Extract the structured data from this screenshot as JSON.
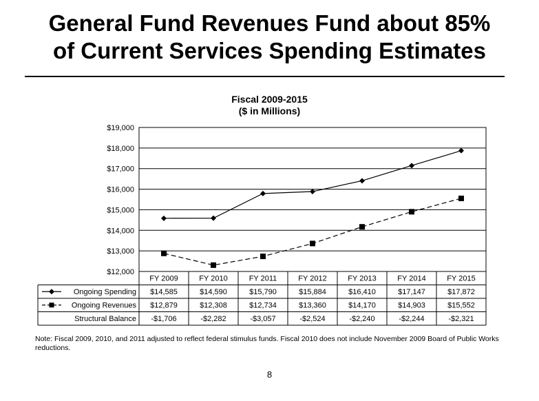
{
  "slide": {
    "title_line1": "General Fund Revenues Fund about 85%",
    "title_line2": "of Current Services Spending Estimates",
    "note": "Note:  Fiscal 2009, 2010, and 2011 adjusted to reflect federal stimulus funds.  Fiscal 2010 does not include November 2009 Board of Public Works reductions.",
    "page_number": "8"
  },
  "chart_data": {
    "type": "line",
    "title": "Fiscal 2009-2015",
    "subtitle": "($ in Millions)",
    "categories": [
      "FY 2009",
      "FY 2010",
      "FY 2011",
      "FY 2012",
      "FY 2013",
      "FY 2014",
      "FY 2015"
    ],
    "ylim": [
      12000,
      19000
    ],
    "yticks": [
      12000,
      13000,
      14000,
      15000,
      16000,
      17000,
      18000,
      19000
    ],
    "ytick_labels": [
      "$12,000",
      "$13,000",
      "$14,000",
      "$15,000",
      "$16,000",
      "$17,000",
      "$18,000",
      "$19,000"
    ],
    "grid": true,
    "series": [
      {
        "name": "Ongoing Spending",
        "marker": "diamond",
        "line_style": "solid",
        "values": [
          14585,
          14590,
          15790,
          15884,
          16410,
          17147,
          17872
        ],
        "labels": [
          "$14,585",
          "$14,590",
          "$15,790",
          "$15,884",
          "$16,410",
          "$17,147",
          "$17,872"
        ]
      },
      {
        "name": "Ongoing Revenues",
        "marker": "square",
        "line_style": "dashed",
        "values": [
          12879,
          12308,
          12734,
          13360,
          14170,
          14903,
          15552
        ],
        "labels": [
          "$12,879",
          "$12,308",
          "$12,734",
          "$13,360",
          "$14,170",
          "$14,903",
          "$15,552"
        ]
      }
    ],
    "table_extra_rows": [
      {
        "name": "Structural Balance",
        "values": [
          -1706,
          -2282,
          -3057,
          -2524,
          -2240,
          -2244,
          -2321
        ],
        "labels": [
          "-$1,706",
          "-$2,282",
          "-$3,057",
          "-$2,524",
          "-$2,240",
          "-$2,244",
          "-$2,321"
        ]
      }
    ],
    "line_color": "#000000",
    "grid_color": "#000000"
  }
}
